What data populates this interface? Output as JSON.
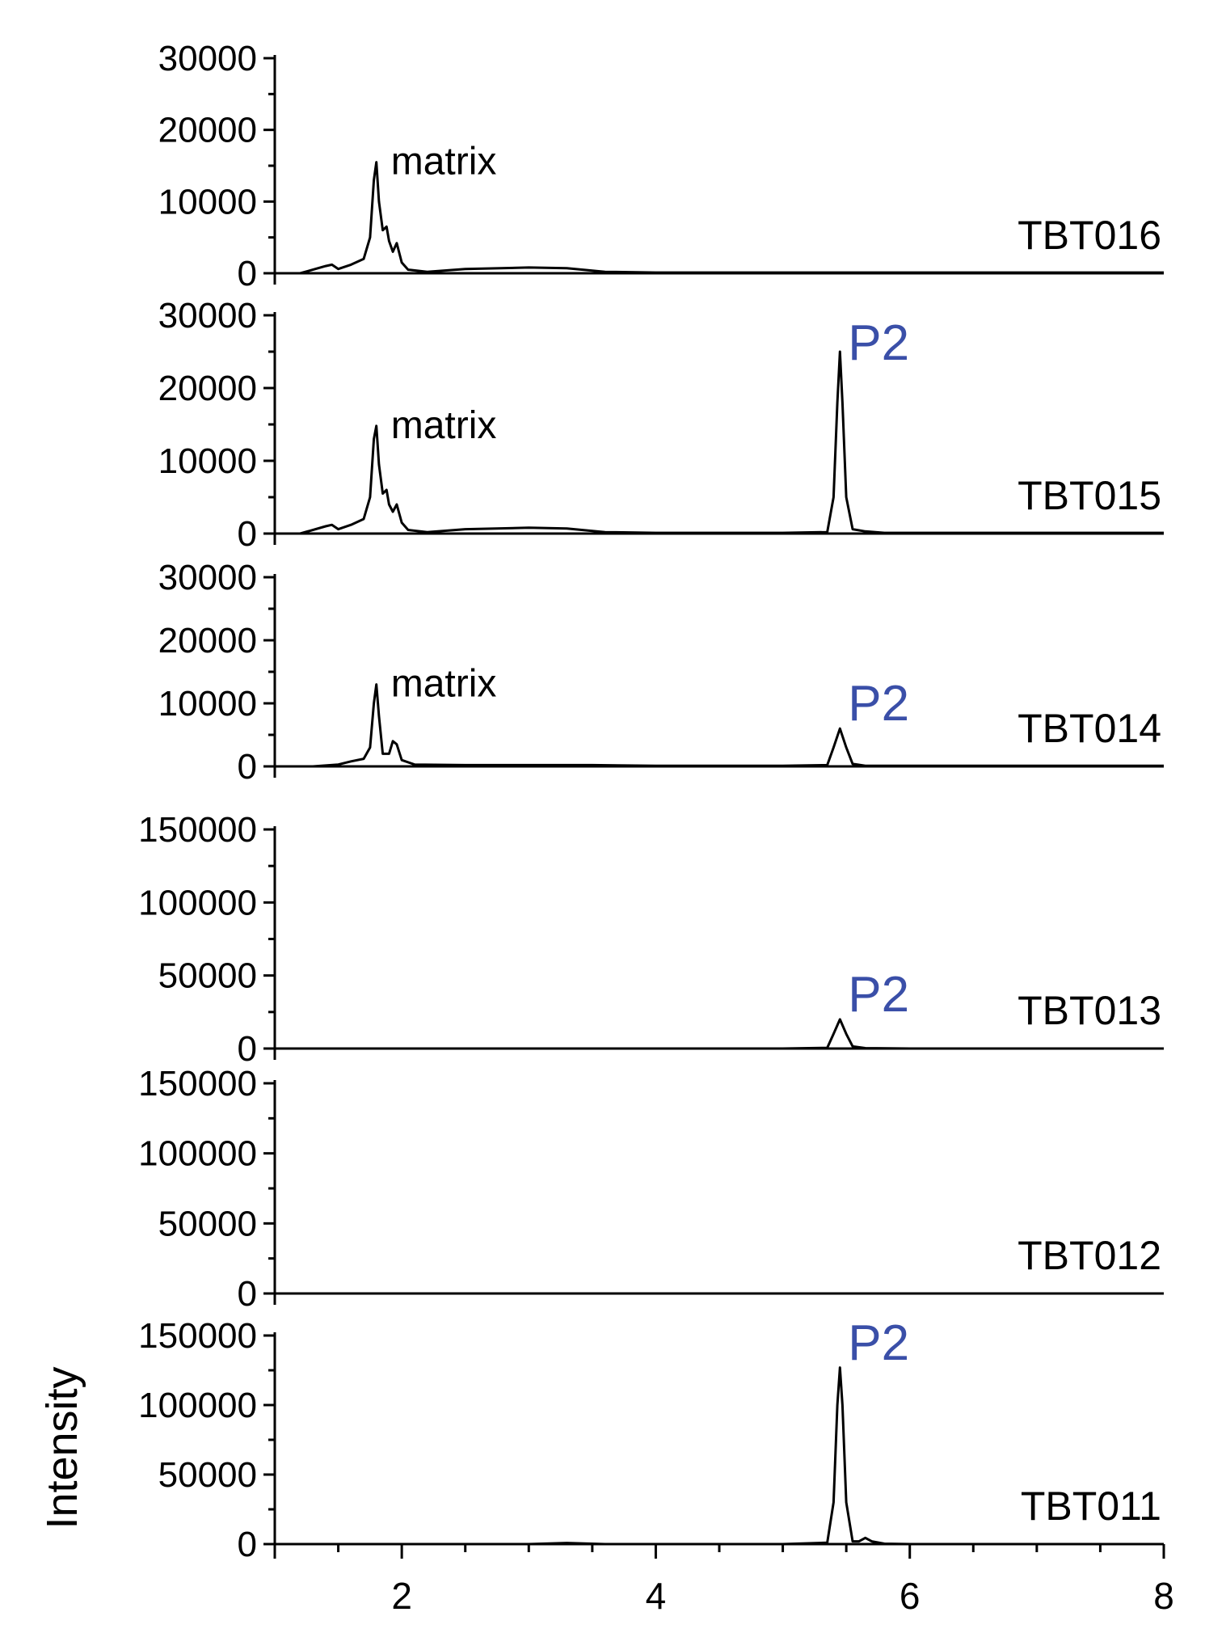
{
  "colors": {
    "axis": "#000000",
    "trace": "#000000",
    "p2_label": "#3a4fa8"
  },
  "chart_data": [
    {
      "type": "line",
      "sample_label": "TBT016",
      "ylim": [
        0,
        30000
      ],
      "yticks": [
        0,
        10000,
        20000,
        30000
      ],
      "ytick_labels": [
        "0",
        "10000",
        "20000",
        "30000"
      ],
      "x": [
        1.0,
        1.2,
        1.4,
        1.45,
        1.5,
        1.6,
        1.7,
        1.75,
        1.78,
        1.8,
        1.82,
        1.85,
        1.88,
        1.9,
        1.93,
        1.96,
        2.0,
        2.05,
        2.2,
        2.5,
        3.0,
        3.3,
        3.6,
        4.0,
        5.0,
        6.0,
        7.0,
        8.0
      ],
      "y": [
        0,
        0,
        1000,
        1200,
        600,
        1200,
        2000,
        5000,
        13000,
        15500,
        10000,
        6000,
        6500,
        4500,
        3000,
        4200,
        1500,
        500,
        200,
        600,
        800,
        700,
        200,
        100,
        100,
        100,
        100,
        100
      ],
      "annotations": [
        {
          "text": "matrix",
          "x": 1.8,
          "y": 15500
        }
      ]
    },
    {
      "type": "line",
      "sample_label": "TBT015",
      "ylim": [
        0,
        30000
      ],
      "yticks": [
        0,
        10000,
        20000,
        30000
      ],
      "ytick_labels": [
        "0",
        "10000",
        "20000",
        "30000"
      ],
      "x": [
        1.0,
        1.2,
        1.4,
        1.45,
        1.5,
        1.6,
        1.7,
        1.75,
        1.78,
        1.8,
        1.82,
        1.85,
        1.88,
        1.9,
        1.93,
        1.96,
        2.0,
        2.05,
        2.2,
        2.5,
        3.0,
        3.3,
        3.6,
        4.0,
        5.0,
        5.35,
        5.4,
        5.43,
        5.45,
        5.47,
        5.5,
        5.55,
        5.65,
        5.8,
        6.0,
        7.0,
        8.0
      ],
      "y": [
        0,
        0,
        1000,
        1200,
        600,
        1200,
        2000,
        5000,
        13000,
        14800,
        9500,
        5500,
        6000,
        4000,
        3000,
        4000,
        1500,
        500,
        200,
        600,
        800,
        700,
        200,
        100,
        100,
        200,
        5000,
        18000,
        25000,
        18000,
        5000,
        600,
        300,
        100,
        100,
        100,
        100
      ],
      "annotations": [
        {
          "text": "matrix",
          "x": 1.8,
          "y": 14800
        },
        {
          "text": "P2",
          "x": 5.45,
          "y": 25000
        }
      ]
    },
    {
      "type": "line",
      "sample_label": "TBT014",
      "ylim": [
        0,
        30000
      ],
      "yticks": [
        0,
        10000,
        20000,
        30000
      ],
      "ytick_labels": [
        "0",
        "10000",
        "20000",
        "30000"
      ],
      "x": [
        1.0,
        1.3,
        1.5,
        1.6,
        1.7,
        1.75,
        1.78,
        1.8,
        1.82,
        1.85,
        1.9,
        1.93,
        1.96,
        2.0,
        2.1,
        2.5,
        3.0,
        3.5,
        4.0,
        5.0,
        5.35,
        5.4,
        5.45,
        5.5,
        5.55,
        5.65,
        6.0,
        7.0,
        8.0
      ],
      "y": [
        0,
        0,
        300,
        800,
        1200,
        3000,
        10000,
        13000,
        8000,
        2000,
        2000,
        4000,
        3500,
        1000,
        300,
        200,
        200,
        200,
        100,
        100,
        200,
        3000,
        6000,
        3000,
        400,
        100,
        100,
        100,
        100
      ],
      "annotations": [
        {
          "text": "matrix",
          "x": 1.8,
          "y": 13000
        },
        {
          "text": "P2",
          "x": 5.45,
          "y": 6000
        }
      ]
    },
    {
      "type": "line",
      "sample_label": "TBT013",
      "ylim": [
        0,
        150000
      ],
      "yticks": [
        0,
        50000,
        100000,
        150000
      ],
      "ytick_labels": [
        "0",
        "50000",
        "100000",
        "150000"
      ],
      "x": [
        1.0,
        2.0,
        3.0,
        4.0,
        5.0,
        5.35,
        5.4,
        5.45,
        5.5,
        5.55,
        5.65,
        6.0,
        7.0,
        8.0
      ],
      "y": [
        0,
        0,
        0,
        0,
        0,
        500,
        10000,
        20000,
        10000,
        1500,
        300,
        0,
        0,
        0
      ],
      "annotations": [
        {
          "text": "P2",
          "x": 5.45,
          "y": 20000
        }
      ]
    },
    {
      "type": "line",
      "sample_label": "TBT012",
      "ylim": [
        0,
        150000
      ],
      "yticks": [
        0,
        50000,
        100000,
        150000
      ],
      "ytick_labels": [
        "0",
        "50000",
        "100000",
        "150000"
      ],
      "x": [
        1.0,
        2.0,
        3.0,
        4.0,
        5.0,
        6.0,
        7.0,
        8.0
      ],
      "y": [
        0,
        0,
        0,
        0,
        0,
        0,
        0,
        0
      ],
      "annotations": []
    },
    {
      "type": "line",
      "sample_label": "TBT011",
      "ylabel": "Intensity",
      "ylim": [
        0,
        150000
      ],
      "yticks": [
        0,
        50000,
        100000,
        150000
      ],
      "ytick_labels": [
        "0",
        "50000",
        "100000",
        "150000"
      ],
      "xlim": [
        1,
        8
      ],
      "xticks": [
        2,
        4,
        6,
        8
      ],
      "xtick_labels": [
        "2",
        "4",
        "6",
        "8"
      ],
      "x": [
        1.0,
        2.0,
        3.0,
        3.3,
        3.6,
        4.0,
        5.0,
        5.35,
        5.4,
        5.43,
        5.45,
        5.47,
        5.5,
        5.55,
        5.6,
        5.65,
        5.7,
        5.8,
        6.0,
        7.0,
        8.0
      ],
      "y": [
        0,
        0,
        0,
        800,
        0,
        0,
        0,
        1000,
        30000,
        100000,
        127000,
        100000,
        30000,
        2000,
        2000,
        4500,
        2000,
        300,
        0,
        0,
        0
      ],
      "annotations": [
        {
          "text": "P2",
          "x": 5.45,
          "y": 127000
        }
      ]
    }
  ]
}
